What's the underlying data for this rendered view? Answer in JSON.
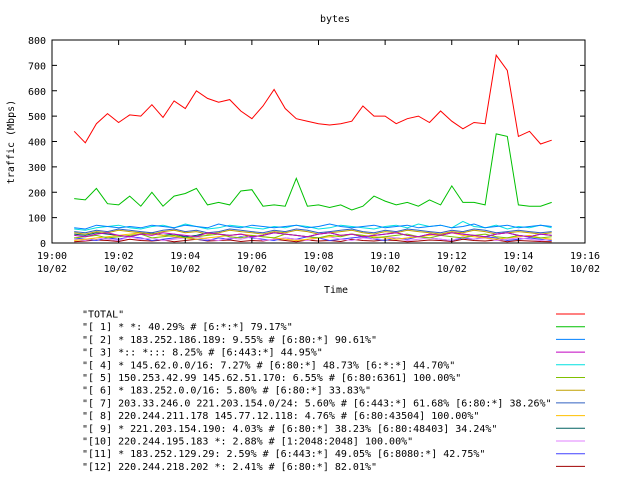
{
  "chart_data": {
    "type": "line",
    "title": "bytes",
    "xlabel": "Time",
    "ylabel": "traffic (Mbps)",
    "ylim": [
      0,
      800
    ],
    "yticks": [
      "0",
      "100",
      "200",
      "300",
      "400",
      "500",
      "600",
      "700",
      "800"
    ],
    "xlim": [
      "19:00",
      "19:16"
    ],
    "xticks": [
      {
        "time": "19:00",
        "date": "10/02"
      },
      {
        "time": "19:02",
        "date": "10/02"
      },
      {
        "time": "19:04",
        "date": "10/02"
      },
      {
        "time": "19:06",
        "date": "10/02"
      },
      {
        "time": "19:08",
        "date": "10/02"
      },
      {
        "time": "19:10",
        "date": "10/02"
      },
      {
        "time": "19:12",
        "date": "10/02"
      },
      {
        "time": "19:14",
        "date": "10/02"
      },
      {
        "time": "19:16",
        "date": "10/02"
      }
    ],
    "grid": false,
    "legend_placement": "bottom",
    "x": [
      "19:00:40",
      "19:01:00",
      "19:01:20",
      "19:01:40",
      "19:02:00",
      "19:02:20",
      "19:02:40",
      "19:03:00",
      "19:03:20",
      "19:03:40",
      "19:04:00",
      "19:04:20",
      "19:04:40",
      "19:05:00",
      "19:05:20",
      "19:05:40",
      "19:06:00",
      "19:06:20",
      "19:06:40",
      "19:07:00",
      "19:07:20",
      "19:07:40",
      "19:08:00",
      "19:08:20",
      "19:08:40",
      "19:09:00",
      "19:09:20",
      "19:09:40",
      "19:10:00",
      "19:10:20",
      "19:10:40",
      "19:11:00",
      "19:11:20",
      "19:11:40",
      "19:12:00",
      "19:12:20",
      "19:12:40",
      "19:13:00",
      "19:13:20",
      "19:13:40",
      "19:14:00",
      "19:14:20",
      "19:14:40",
      "19:15:00"
    ],
    "series": [
      {
        "name": "\"TOTAL\"",
        "color": "#ff0000",
        "values": [
          440,
          395,
          470,
          510,
          475,
          505,
          500,
          545,
          495,
          560,
          530,
          600,
          570,
          555,
          565,
          520,
          490,
          540,
          605,
          530,
          490,
          480,
          470,
          465,
          470,
          480,
          540,
          500,
          500,
          470,
          490,
          500,
          475,
          520,
          480,
          450,
          475,
          470,
          740,
          680,
          420,
          440,
          390,
          405
        ]
      },
      {
        "name": "\"[ 1] * *: 40.29% # [6:*:*] 79.17%\"",
        "color": "#00c000",
        "values": [
          175,
          170,
          215,
          155,
          150,
          185,
          145,
          200,
          145,
          185,
          195,
          215,
          150,
          160,
          150,
          205,
          210,
          145,
          150,
          145,
          255,
          145,
          150,
          140,
          150,
          130,
          145,
          185,
          165,
          150,
          160,
          145,
          170,
          150,
          225,
          160,
          160,
          150,
          430,
          420,
          150,
          145,
          145,
          160
        ]
      },
      {
        "name": "\"[ 2] * 183.252.186.189: 9.55% # [6:80:*] 90.61%\"",
        "color": "#0080ff",
        "values": [
          60,
          55,
          70,
          65,
          60,
          65,
          60,
          70,
          65,
          60,
          70,
          65,
          60,
          75,
          65,
          60,
          70,
          65,
          60,
          65,
          70,
          60,
          65,
          75,
          65,
          60,
          65,
          70,
          60,
          65,
          70,
          60,
          65,
          70,
          60,
          65,
          75,
          60,
          65,
          70,
          60,
          65,
          70,
          65
        ]
      },
      {
        "name": "\"[ 3] *:: *::: 8.25% # [6:443:*] 44.95%\"",
        "color": "#c000c0",
        "values": [
          30,
          25,
          35,
          40,
          30,
          25,
          35,
          30,
          40,
          35,
          30,
          25,
          40,
          35,
          30,
          35,
          25,
          30,
          40,
          35,
          30,
          25,
          35,
          40,
          30,
          35,
          25,
          30,
          35,
          40,
          30,
          25,
          35,
          30,
          40,
          35,
          30,
          25,
          35,
          40,
          30,
          25,
          35,
          30
        ]
      },
      {
        "name": "\"[ 4] * 145.62.0.0/16: 7.27% # [6:80:*] 48.73% [6:*:*] 44.70%\"",
        "color": "#00e0e0",
        "values": [
          55,
          50,
          60,
          65,
          70,
          60,
          55,
          65,
          70,
          60,
          75,
          65,
          55,
          60,
          70,
          65,
          60,
          55,
          65,
          60,
          70,
          65,
          55,
          60,
          70,
          65,
          60,
          55,
          65,
          70,
          60,
          75,
          65,
          70,
          60,
          85,
          65,
          60,
          70,
          55,
          65,
          60,
          70,
          60
        ]
      },
      {
        "name": "\"[ 5] 150.253.42.99 145.62.51.170: 6.55% # [6:80:6361] 100.00%\"",
        "color": "#80c000",
        "values": [
          20,
          25,
          30,
          20,
          25,
          30,
          35,
          20,
          25,
          30,
          20,
          25,
          30,
          35,
          25,
          20,
          30,
          25,
          20,
          35,
          30,
          25,
          20,
          30,
          25,
          35,
          30,
          20,
          25,
          30,
          35,
          25,
          20,
          30,
          25,
          20,
          30,
          35,
          25,
          20,
          30,
          25,
          20,
          25
        ]
      },
      {
        "name": "\"[ 6] * 183.252.0.0/16: 5.80% # [6:80:*] 33.83%\"",
        "color": "#c0a000",
        "values": [
          40,
          35,
          45,
          40,
          50,
          45,
          40,
          35,
          45,
          50,
          40,
          45,
          35,
          40,
          50,
          45,
          40,
          35,
          45,
          40,
          50,
          45,
          35,
          40,
          45,
          50,
          40,
          35,
          45,
          40,
          50,
          45,
          40,
          35,
          45,
          40,
          50,
          45,
          35,
          40,
          45,
          40,
          35,
          40
        ]
      },
      {
        "name": "\"[ 7] 203.33.246.0 221.203.154.0/24: 5.60% # [6:443:*] 61.68% [6:80:*] 38.26%\"",
        "color": "#3060c0",
        "values": [
          45,
          40,
          50,
          45,
          55,
          50,
          45,
          40,
          50,
          55,
          45,
          50,
          40,
          45,
          55,
          50,
          45,
          40,
          50,
          45,
          55,
          50,
          40,
          45,
          50,
          55,
          45,
          40,
          50,
          45,
          55,
          50,
          45,
          40,
          50,
          45,
          55,
          50,
          40,
          45,
          50,
          45,
          40,
          45
        ]
      },
      {
        "name": "\"[ 8] 220.244.211.178 145.77.12.118: 4.76% # [6:80:43504] 100.00%\"",
        "color": "#ffc000",
        "values": [
          10,
          15,
          20,
          25,
          30,
          35,
          40,
          35,
          30,
          25,
          20,
          15,
          20,
          25,
          30,
          35,
          30,
          25,
          20,
          15,
          10,
          15,
          20,
          25,
          30,
          35,
          30,
          25,
          20,
          15,
          20,
          25,
          30,
          35,
          40,
          30,
          25,
          20,
          15,
          20,
          25,
          30,
          20,
          15
        ]
      },
      {
        "name": "\"[ 9] * 221.203.154.190: 4.03% # [6:80:*] 38.23% [6:80:48403] 34.24%\"",
        "color": "#006060",
        "values": [
          35,
          30,
          40,
          35,
          30,
          25,
          35,
          40,
          30,
          35,
          25,
          30,
          40,
          35,
          30,
          35,
          25,
          30,
          40,
          35,
          30,
          25,
          35,
          40,
          30,
          35,
          25,
          30,
          35,
          40,
          30,
          25,
          35,
          30,
          40,
          35,
          30,
          25,
          35,
          40,
          30,
          25,
          35,
          30
        ]
      },
      {
        "name": "\"[10] 220.244.195.183 *: 2.88% # [1:2048:2048] 100.00%\"",
        "color": "#e080ff",
        "values": [
          15,
          10,
          20,
          15,
          10,
          25,
          15,
          20,
          10,
          15,
          20,
          25,
          15,
          10,
          20,
          15,
          25,
          10,
          15,
          20,
          15,
          10,
          20,
          25,
          15,
          10,
          20,
          15,
          25,
          20,
          10,
          15,
          20,
          15,
          10,
          25,
          15,
          20,
          10,
          15,
          20,
          15,
          10,
          15
        ]
      },
      {
        "name": "\"[11] * 183.252.129.29: 2.59% # [6:443:*] 49.05% [6:8080:*] 42.75%\"",
        "color": "#4040ff",
        "values": [
          20,
          15,
          10,
          20,
          15,
          25,
          20,
          10,
          15,
          20,
          25,
          15,
          10,
          20,
          15,
          25,
          20,
          15,
          10,
          20,
          15,
          25,
          20,
          10,
          15,
          20,
          25,
          15,
          10,
          20,
          15,
          25,
          20,
          15,
          10,
          20,
          15,
          25,
          20,
          10,
          15,
          20,
          15,
          10
        ]
      },
      {
        "name": "\"[12] 220.244.218.202 *: 2.41% # [6:80:*] 82.01%\"",
        "color": "#a00000",
        "values": [
          5,
          8,
          12,
          10,
          6,
          15,
          10,
          8,
          12,
          5,
          10,
          15,
          8,
          10,
          12,
          6,
          10,
          8,
          15,
          10,
          5,
          12,
          8,
          10,
          6,
          15,
          10,
          8,
          12,
          10,
          5,
          8,
          12,
          10,
          6,
          15,
          10,
          8,
          12,
          5,
          10,
          8,
          6,
          5
        ]
      }
    ]
  }
}
